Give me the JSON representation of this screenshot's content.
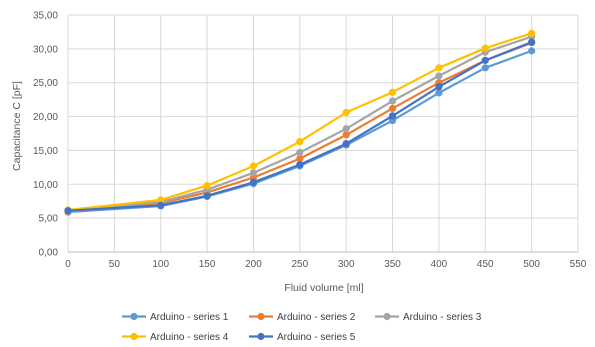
{
  "chart_data": {
    "type": "line",
    "title": "",
    "xlabel": "Fluid volume [ml]",
    "ylabel": "Capacitance C [pF]",
    "xlim": [
      0,
      550
    ],
    "ylim": [
      0,
      35
    ],
    "x_ticks": [
      0,
      50,
      100,
      150,
      200,
      250,
      300,
      350,
      400,
      450,
      500,
      550
    ],
    "x_tick_labels": [
      "0",
      "50",
      "100",
      "150",
      "200",
      "250",
      "300",
      "350",
      "400",
      "450",
      "500",
      "550"
    ],
    "y_ticks": [
      0,
      5,
      10,
      15,
      20,
      25,
      30,
      35
    ],
    "y_tick_labels": [
      "0,00",
      "5,00",
      "10,00",
      "15,00",
      "20,00",
      "25,00",
      "30,00",
      "35,00"
    ],
    "grid": true,
    "legend_position": "bottom",
    "x": [
      0,
      100,
      150,
      200,
      250,
      300,
      350,
      400,
      450,
      500
    ],
    "series": [
      {
        "name": "Arduino - series 1",
        "color": "#5B9BD5",
        "values": [
          5.9,
          6.8,
          8.2,
          10.1,
          12.7,
          15.8,
          19.4,
          23.5,
          27.2,
          29.7
        ]
      },
      {
        "name": "Arduino - series 2",
        "color": "#ED7D31",
        "values": [
          6.0,
          7.2,
          8.8,
          11.0,
          13.8,
          17.3,
          21.2,
          25.0,
          28.3,
          30.9
        ]
      },
      {
        "name": "Arduino - series 3",
        "color": "#A5A5A5",
        "values": [
          6.1,
          7.4,
          9.2,
          11.7,
          14.7,
          18.2,
          22.3,
          26.0,
          29.5,
          31.8
        ]
      },
      {
        "name": "Arduino - series 4",
        "color": "#FFC000",
        "values": [
          6.2,
          7.7,
          9.8,
          12.7,
          16.3,
          20.6,
          23.6,
          27.2,
          30.1,
          32.3
        ]
      },
      {
        "name": "Arduino - series 5",
        "color": "#4472C4",
        "values": [
          6.1,
          6.9,
          8.3,
          10.3,
          12.9,
          16.0,
          20.1,
          24.4,
          28.3,
          31.0
        ]
      }
    ]
  }
}
